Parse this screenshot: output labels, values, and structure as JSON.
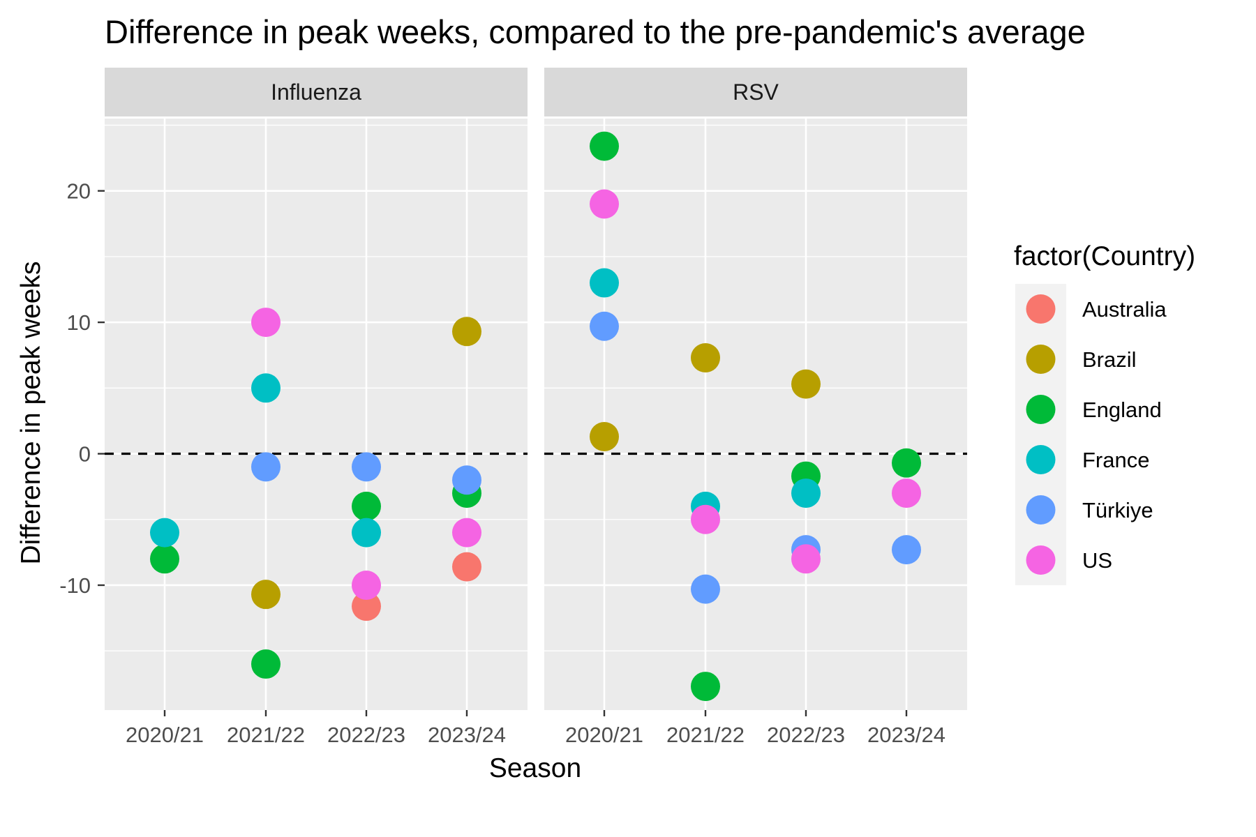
{
  "chart_data": {
    "type": "scatter",
    "title": "Difference in peak weeks, compared to the pre-pandemic's average",
    "xlabel": "Season",
    "ylabel": "Difference in peak weeks",
    "categories": [
      "2020/21",
      "2021/22",
      "2022/23",
      "2023/24"
    ],
    "ylim": [
      -19.5,
      25.5
    ],
    "yticks": [
      -10,
      0,
      10,
      20
    ],
    "reference_line": {
      "y": 0,
      "style": "dashed"
    },
    "grid": true,
    "legend": {
      "title": "factor(Country)",
      "placement": "right"
    },
    "panels": [
      {
        "name": "Influenza",
        "series": [
          {
            "name": "Australia",
            "values": [
              null,
              null,
              -11.6,
              -8.6
            ]
          },
          {
            "name": "Brazil",
            "values": [
              null,
              -10.7,
              null,
              9.3
            ]
          },
          {
            "name": "England",
            "values": [
              -8,
              -16,
              -4,
              -3
            ]
          },
          {
            "name": "France",
            "values": [
              -6,
              5,
              -6,
              null
            ]
          },
          {
            "name": "Türkiye",
            "values": [
              null,
              -1,
              -1,
              -2
            ]
          },
          {
            "name": "US",
            "values": [
              null,
              10,
              -10,
              -6
            ]
          }
        ]
      },
      {
        "name": "RSV",
        "series": [
          {
            "name": "Australia",
            "values": [
              null,
              null,
              null,
              null
            ]
          },
          {
            "name": "Brazil",
            "values": [
              1.3,
              7.3,
              5.3,
              null
            ]
          },
          {
            "name": "England",
            "values": [
              23.4,
              -17.7,
              -1.7,
              -0.7
            ]
          },
          {
            "name": "France",
            "values": [
              13,
              -4,
              -3,
              null
            ]
          },
          {
            "name": "Türkiye",
            "values": [
              9.7,
              -10.3,
              -7.3,
              -7.3
            ]
          },
          {
            "name": "US",
            "values": [
              19,
              -5,
              -8,
              -3
            ]
          }
        ]
      }
    ],
    "colors": {
      "Australia": "#F8766D",
      "Brazil": "#B79F00",
      "England": "#00BA38",
      "France": "#00BFC4",
      "Türkiye": "#619CFF",
      "US": "#F564E3"
    },
    "panel_background": "#EBEBEB",
    "strip_background": "#D9D9D9"
  }
}
